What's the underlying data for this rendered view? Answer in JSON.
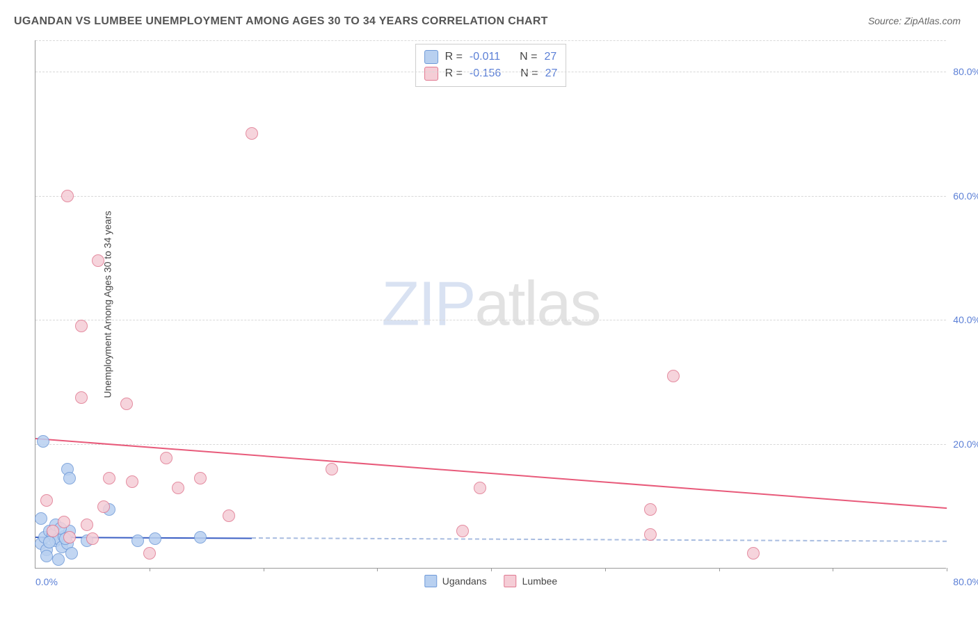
{
  "title": "UGANDAN VS LUMBEE UNEMPLOYMENT AMONG AGES 30 TO 34 YEARS CORRELATION CHART",
  "source": "Source: ZipAtlas.com",
  "y_axis_label": "Unemployment Among Ages 30 to 34 years",
  "watermark": {
    "part1": "ZIP",
    "part2": "atlas"
  },
  "chart": {
    "type": "scatter",
    "xlim": [
      0,
      80
    ],
    "ylim": [
      0,
      85
    ],
    "x_start_label": "0.0%",
    "x_end_label": "80.0%",
    "y_ticks": [
      {
        "value": 20,
        "label": "20.0%"
      },
      {
        "value": 40,
        "label": "40.0%"
      },
      {
        "value": 60,
        "label": "60.0%"
      },
      {
        "value": 80,
        "label": "80.0%"
      }
    ],
    "x_tick_positions": [
      10,
      20,
      30,
      40,
      50,
      60,
      70,
      80
    ],
    "grid_color": "#d8d8d8",
    "background_color": "#ffffff",
    "axis_label_color": "#5b7fd6",
    "series": [
      {
        "name": "Ugandans",
        "fill": "#b8d0f0",
        "stroke": "#6f9ad8",
        "trend_color": "#3b5fc4",
        "trend_dashed_color": "#a8bce0",
        "R": "-0.011",
        "N": "27",
        "points": [
          {
            "x": 0.5,
            "y": 4.0
          },
          {
            "x": 0.8,
            "y": 5.0
          },
          {
            "x": 1.0,
            "y": 3.0
          },
          {
            "x": 1.2,
            "y": 6.0
          },
          {
            "x": 1.5,
            "y": 5.5
          },
          {
            "x": 1.8,
            "y": 4.5
          },
          {
            "x": 2.0,
            "y": 4.8
          },
          {
            "x": 2.3,
            "y": 3.5
          },
          {
            "x": 1.0,
            "y": 2.0
          },
          {
            "x": 2.5,
            "y": 5.2
          },
          {
            "x": 2.8,
            "y": 4.0
          },
          {
            "x": 3.0,
            "y": 6.0
          },
          {
            "x": 0.5,
            "y": 8.0
          },
          {
            "x": 0.7,
            "y": 20.5
          },
          {
            "x": 2.8,
            "y": 16.0
          },
          {
            "x": 3.0,
            "y": 14.5
          },
          {
            "x": 4.5,
            "y": 4.5
          },
          {
            "x": 6.5,
            "y": 9.5
          },
          {
            "x": 2.0,
            "y": 1.5
          },
          {
            "x": 3.2,
            "y": 2.5
          },
          {
            "x": 9.0,
            "y": 4.5
          },
          {
            "x": 10.5,
            "y": 4.8
          },
          {
            "x": 14.5,
            "y": 5.0
          },
          {
            "x": 1.8,
            "y": 7.0
          },
          {
            "x": 2.2,
            "y": 6.5
          },
          {
            "x": 1.2,
            "y": 4.2
          },
          {
            "x": 2.6,
            "y": 4.8
          }
        ],
        "trend": {
          "x1": 0,
          "y1": 5.2,
          "x2_solid": 19,
          "x2": 80,
          "y2": 4.5
        }
      },
      {
        "name": "Lumbee",
        "fill": "#f5cdd6",
        "stroke": "#e07890",
        "trend_color": "#e85a7a",
        "R": "-0.156",
        "N": "27",
        "points": [
          {
            "x": 2.8,
            "y": 60.0
          },
          {
            "x": 19.0,
            "y": 70.0
          },
          {
            "x": 5.5,
            "y": 49.5
          },
          {
            "x": 4.0,
            "y": 39.0
          },
          {
            "x": 4.0,
            "y": 27.5
          },
          {
            "x": 8.0,
            "y": 26.5
          },
          {
            "x": 56.0,
            "y": 31.0
          },
          {
            "x": 11.5,
            "y": 17.8
          },
          {
            "x": 26.0,
            "y": 16.0
          },
          {
            "x": 6.5,
            "y": 14.5
          },
          {
            "x": 8.5,
            "y": 14.0
          },
          {
            "x": 14.5,
            "y": 14.5
          },
          {
            "x": 1.0,
            "y": 11.0
          },
          {
            "x": 6.0,
            "y": 10.0
          },
          {
            "x": 12.5,
            "y": 13.0
          },
          {
            "x": 17.0,
            "y": 8.5
          },
          {
            "x": 2.5,
            "y": 7.5
          },
          {
            "x": 4.5,
            "y": 7.0
          },
          {
            "x": 5.0,
            "y": 4.8
          },
          {
            "x": 10.0,
            "y": 2.5
          },
          {
            "x": 37.5,
            "y": 6.0
          },
          {
            "x": 54.0,
            "y": 9.5
          },
          {
            "x": 39.0,
            "y": 13.0
          },
          {
            "x": 54.0,
            "y": 5.5
          },
          {
            "x": 63.0,
            "y": 2.5
          },
          {
            "x": 1.5,
            "y": 6.0
          },
          {
            "x": 3.0,
            "y": 5.0
          }
        ],
        "trend": {
          "x1": 0,
          "y1": 21.0,
          "x2": 80,
          "y2": 9.8
        }
      }
    ]
  },
  "legend_top_labels": {
    "R": "R =",
    "N": "N ="
  },
  "legend_bottom": [
    {
      "label": "Ugandans",
      "fill": "#b8d0f0",
      "stroke": "#6f9ad8"
    },
    {
      "label": "Lumbee",
      "fill": "#f5cdd6",
      "stroke": "#e07890"
    }
  ]
}
